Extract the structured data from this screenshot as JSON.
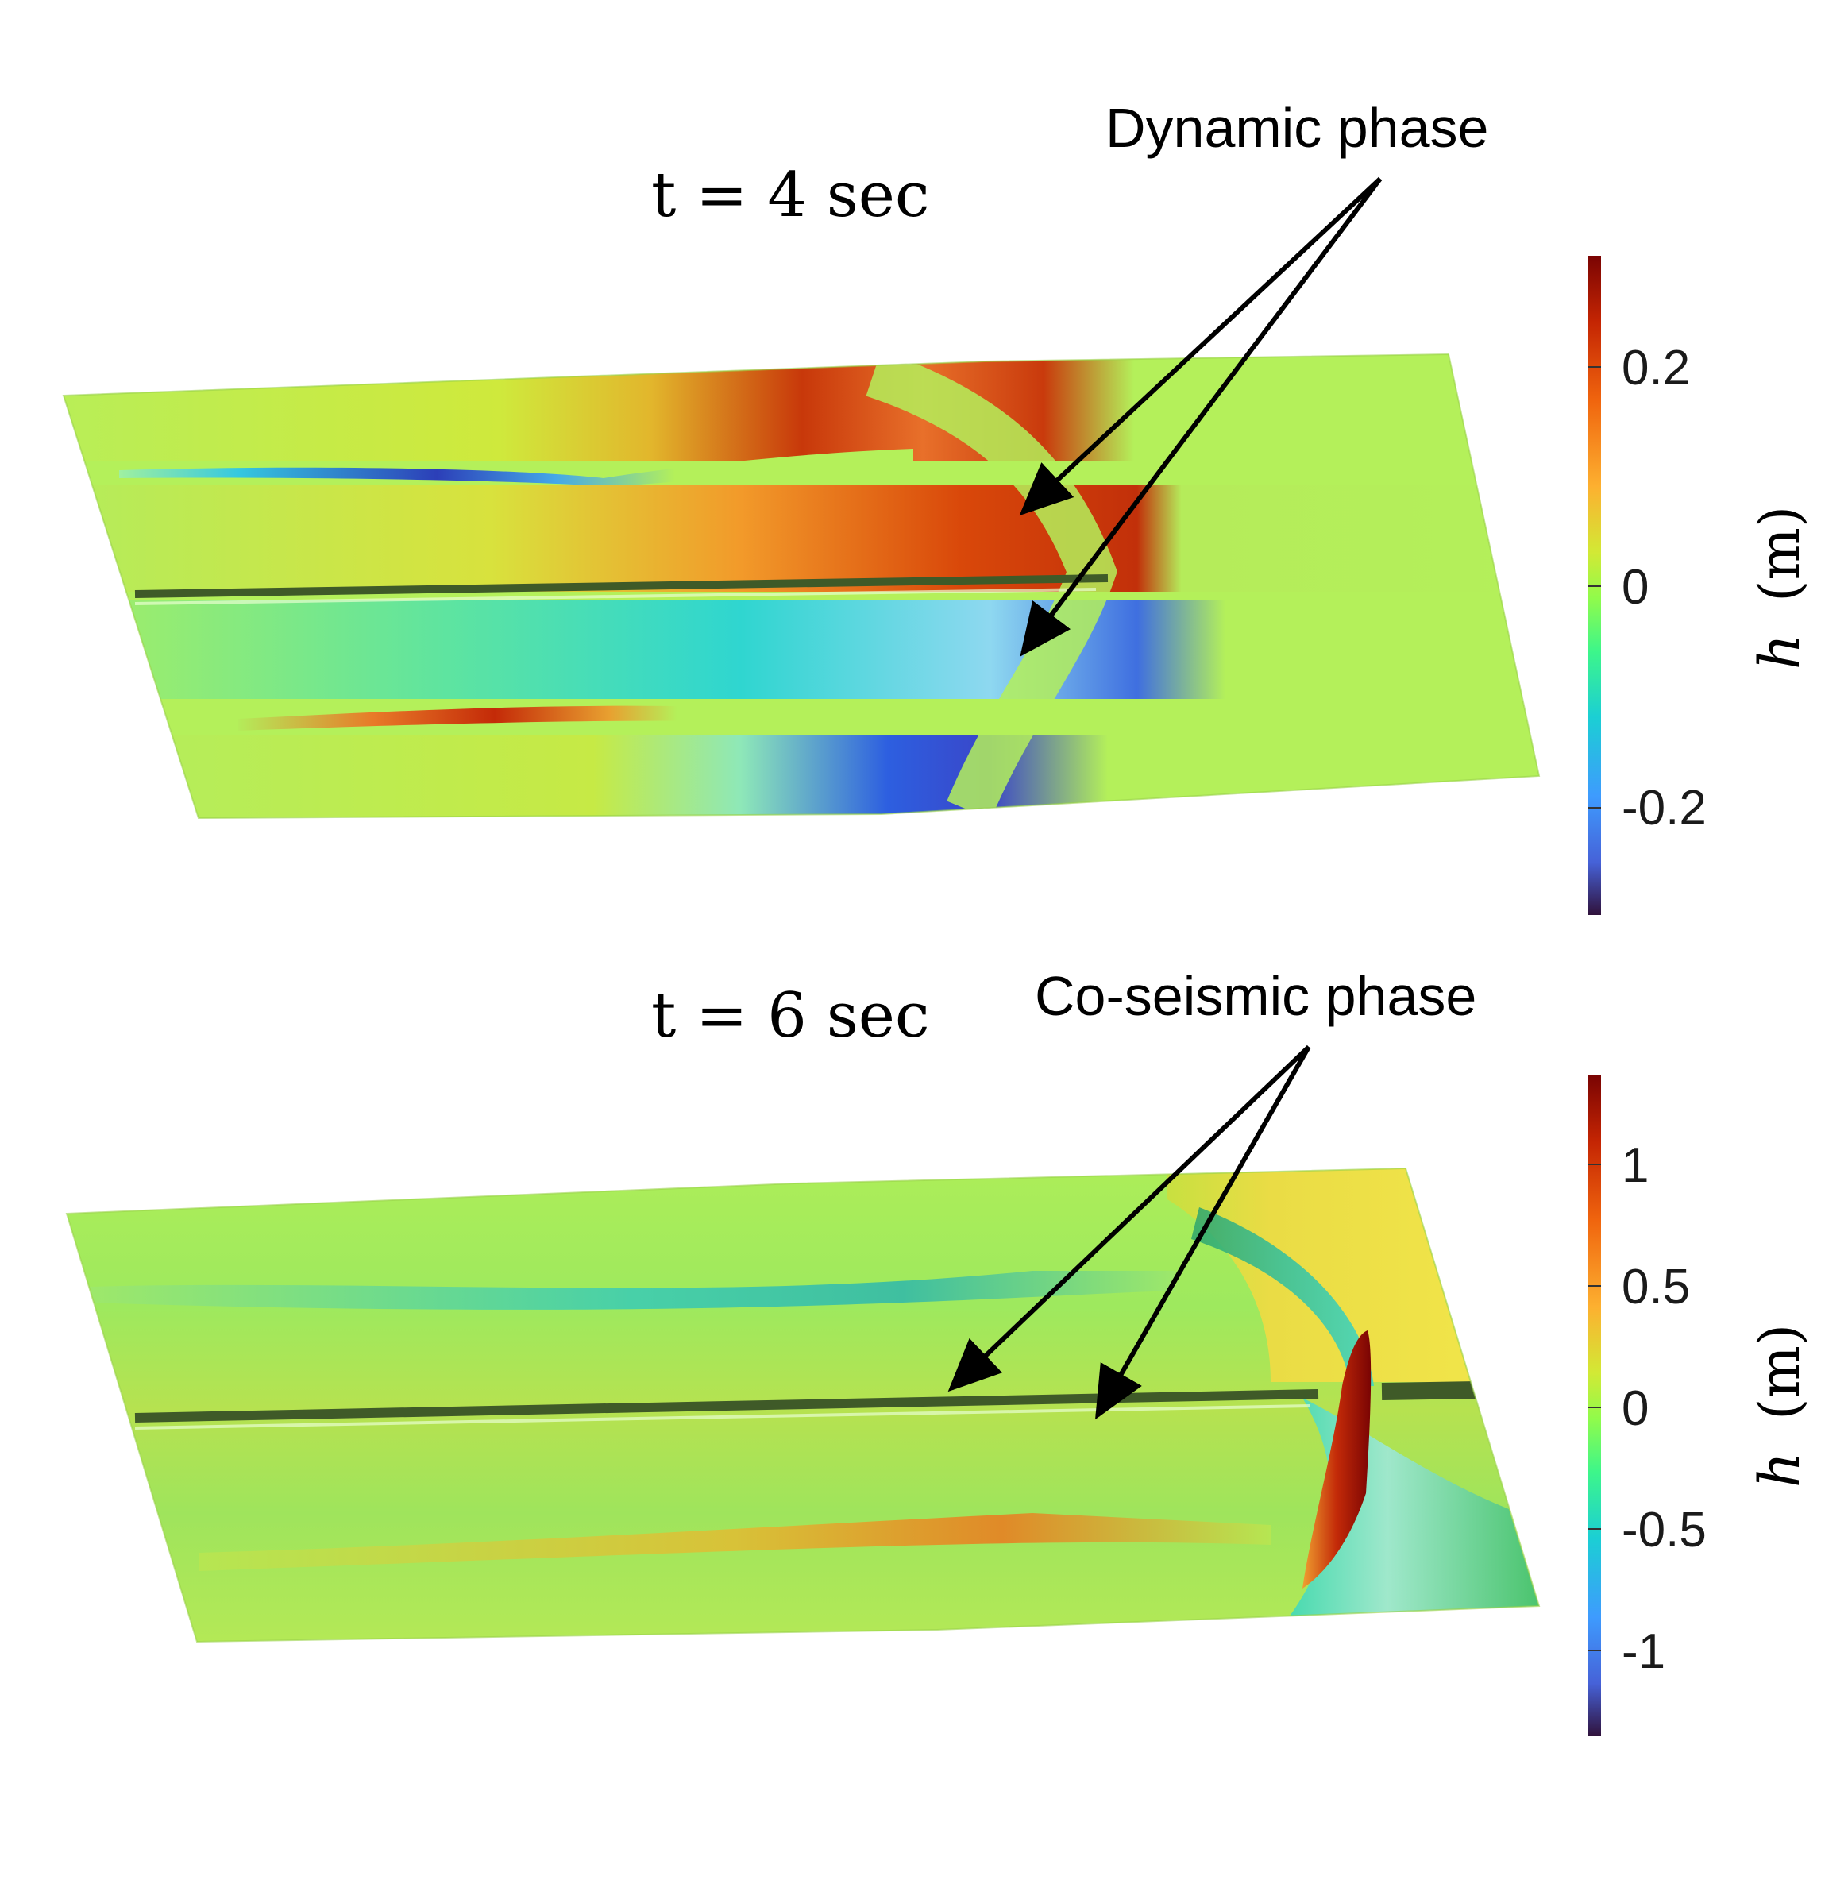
{
  "panels": [
    {
      "time_label": "t = 4 sec",
      "annotation": "Dynamic phase",
      "colorbar": {
        "title_symbol": "h",
        "title_unit": "(m)",
        "ticks": [
          "0.2",
          "0",
          "-0.2"
        ]
      }
    },
    {
      "time_label": "t = 6 sec",
      "annotation": "Co-seismic phase",
      "colorbar": {
        "title_symbol": "h",
        "title_unit": "(m)",
        "ticks": [
          "1",
          "0.5",
          "0",
          "-0.5",
          "-1"
        ]
      }
    }
  ],
  "colors": {
    "colormap": [
      "#30123b",
      "#4662d8",
      "#1bcfd4",
      "#62fc6b",
      "#d2e935",
      "#fe9b2d",
      "#d93806",
      "#7a0403"
    ],
    "background_field": "#b4f05a",
    "annotation_arrow": "#000000"
  }
}
